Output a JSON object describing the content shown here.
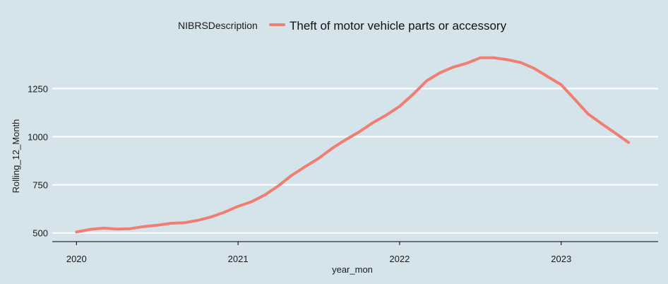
{
  "chart_data": {
    "type": "line",
    "xlabel": "year_mon",
    "ylabel": "Rolling_12_Month",
    "legend": {
      "title": "NIBRSDescription",
      "placement": "top",
      "entries": [
        "Theft of motor vehicle parts or accessory"
      ]
    },
    "x_ticks": [
      "2020",
      "2021",
      "2022",
      "2023"
    ],
    "x_tick_values": [
      2020,
      2021,
      2022,
      2023
    ],
    "xlim": [
      2019.85,
      2023.6
    ],
    "y_ticks": [
      500,
      750,
      1000,
      1250
    ],
    "ylim": [
      455,
      1490
    ],
    "grid": {
      "major_y": true,
      "major_x": false
    },
    "colors": {
      "series": "#f07e73",
      "gridline": "#ffffff",
      "background": "#d5e4eb"
    },
    "series": [
      {
        "name": "Theft of motor vehicle parts or accessory",
        "x": [
          2020.0,
          2020.083,
          2020.167,
          2020.25,
          2020.333,
          2020.417,
          2020.5,
          2020.583,
          2020.667,
          2020.75,
          2020.833,
          2020.917,
          2021.0,
          2021.083,
          2021.167,
          2021.25,
          2021.333,
          2021.417,
          2021.5,
          2021.583,
          2021.667,
          2021.75,
          2021.833,
          2021.917,
          2022.0,
          2022.083,
          2022.167,
          2022.25,
          2022.333,
          2022.417,
          2022.5,
          2022.583,
          2022.667,
          2022.75,
          2022.833,
          2022.917,
          2023.0,
          2023.083,
          2023.167,
          2023.25,
          2023.333,
          2023.417
        ],
        "values": [
          505,
          518,
          525,
          520,
          522,
          533,
          540,
          550,
          553,
          565,
          583,
          608,
          638,
          662,
          698,
          745,
          800,
          845,
          888,
          940,
          985,
          1025,
          1072,
          1112,
          1158,
          1220,
          1290,
          1332,
          1362,
          1382,
          1410,
          1410,
          1400,
          1385,
          1355,
          1312,
          1270,
          1195,
          1118,
          1068,
          1020,
          970
        ]
      }
    ]
  }
}
